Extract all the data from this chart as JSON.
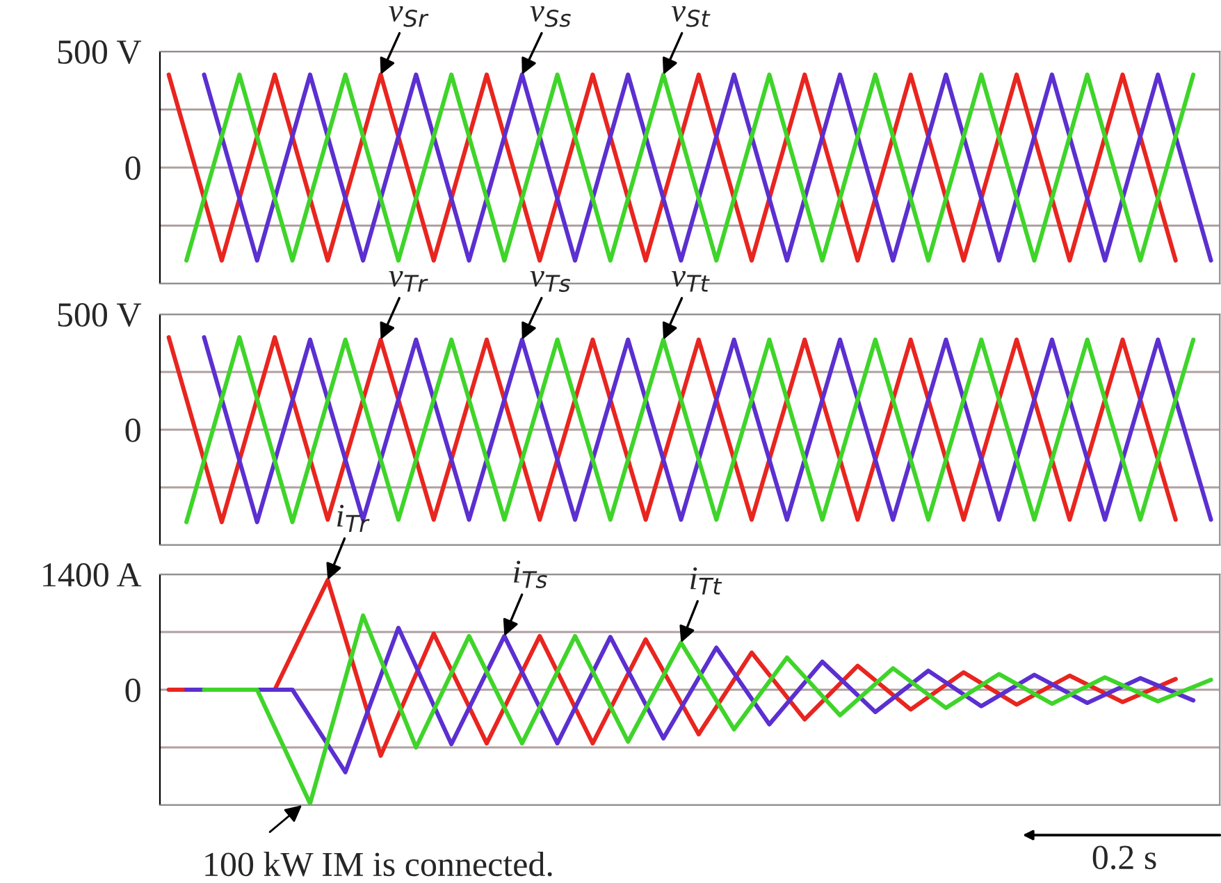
{
  "chart_data": [
    {
      "type": "line",
      "categories": [
        null,
        null,
        null,
        null,
        null,
        null,
        null,
        null,
        null,
        null,
        null,
        null,
        null,
        null,
        null,
        null,
        null,
        null,
        null,
        null,
        null,
        null,
        null,
        null,
        null,
        null,
        null,
        null,
        null,
        null,
        null,
        null,
        null,
        null,
        null,
        null,
        null,
        null,
        null,
        null,
        null,
        null,
        null,
        null,
        null,
        null,
        null,
        null,
        null,
        null,
        null,
        null,
        null,
        null,
        null,
        null,
        null,
        null,
        null,
        null
      ],
      "ylim": [
        -500,
        500
      ],
      "yticks": [
        {
          "value": -500,
          "label": null
        },
        {
          "value": -250,
          "label": null
        },
        0,
        {
          "value": 250,
          "label": null
        },
        {
          "value": 500,
          "label": "500 V"
        }
      ],
      "grid": "y",
      "tick_labels": "y",
      "series": [
        {
          "name": "v$_{Sr}$",
          "color": "#e8251f",
          "values": [
            400,
            null,
            null,
            -400,
            null,
            null,
            400,
            null,
            null,
            -400,
            null,
            null,
            400,
            null,
            null,
            -400,
            null,
            null,
            400,
            null,
            null,
            -400,
            null,
            null,
            400,
            null,
            null,
            -400,
            null,
            null,
            400,
            null,
            null,
            -400,
            null,
            null,
            400,
            null,
            null,
            -400,
            null,
            null,
            400,
            null,
            null,
            -400,
            null,
            null,
            400,
            null,
            null,
            -400,
            null,
            null,
            400,
            null,
            null,
            -400,
            null,
            null
          ]
        },
        {
          "name": "v$_{Ss}$",
          "color": "#5b2fd0",
          "values": [
            null,
            null,
            400,
            null,
            null,
            -400,
            null,
            null,
            400,
            null,
            null,
            -400,
            null,
            null,
            400,
            null,
            null,
            -400,
            null,
            null,
            400,
            null,
            null,
            -400,
            null,
            null,
            400,
            null,
            null,
            -400,
            null,
            null,
            400,
            null,
            null,
            -400,
            null,
            null,
            400,
            null,
            null,
            -400,
            null,
            null,
            400,
            null,
            null,
            -400,
            null,
            null,
            400,
            null,
            null,
            -400,
            null,
            null,
            400,
            null,
            null,
            -400
          ]
        },
        {
          "name": "v$_{St}$",
          "color": "#3fd42a",
          "values": [
            null,
            -400,
            null,
            null,
            400,
            null,
            null,
            -400,
            null,
            null,
            400,
            null,
            null,
            -400,
            null,
            null,
            400,
            null,
            null,
            -400,
            null,
            null,
            400,
            null,
            null,
            -400,
            null,
            null,
            400,
            null,
            null,
            -400,
            null,
            null,
            400,
            null,
            null,
            -400,
            null,
            null,
            400,
            null,
            null,
            -400,
            null,
            null,
            400,
            null,
            null,
            -400,
            null,
            null,
            400,
            null,
            null,
            -400,
            null,
            null,
            400,
            null
          ]
        }
      ]
    },
    {
      "type": "line",
      "categories": [
        null,
        null,
        null,
        null,
        null,
        null,
        null,
        null,
        null,
        null,
        null,
        null,
        null,
        null,
        null,
        null,
        null,
        null,
        null,
        null,
        null,
        null,
        null,
        null,
        null,
        null,
        null,
        null,
        null,
        null,
        null,
        null,
        null,
        null,
        null,
        null,
        null,
        null,
        null,
        null,
        null,
        null,
        null,
        null,
        null,
        null,
        null,
        null,
        null,
        null,
        null,
        null,
        null,
        null,
        null,
        null,
        null,
        null,
        null,
        null
      ],
      "ylim": [
        -500,
        500
      ],
      "yticks": [
        {
          "value": -500,
          "label": null
        },
        {
          "value": -250,
          "label": null
        },
        0,
        {
          "value": 250,
          "label": null
        },
        {
          "value": 500,
          "label": "500 V"
        }
      ],
      "grid": "y",
      "tick_labels": "y",
      "series": [
        {
          "name": "v$_{Tr}$",
          "color": "#e8251f",
          "values": [
            400,
            null,
            null,
            -400,
            null,
            null,
            400,
            null,
            null,
            -390,
            null,
            null,
            390,
            null,
            null,
            -390,
            null,
            null,
            390,
            null,
            null,
            -390,
            null,
            null,
            390,
            null,
            null,
            -390,
            null,
            null,
            390,
            null,
            null,
            -390,
            null,
            null,
            390,
            null,
            null,
            -390,
            null,
            null,
            390,
            null,
            null,
            -390,
            null,
            null,
            390,
            null,
            null,
            -390,
            null,
            null,
            390,
            null,
            null,
            -390,
            null,
            null
          ]
        },
        {
          "name": "v$_{Ts}$",
          "color": "#5b2fd0",
          "values": [
            null,
            null,
            400,
            null,
            null,
            -400,
            null,
            null,
            390,
            null,
            null,
            -390,
            null,
            null,
            390,
            null,
            null,
            -390,
            null,
            null,
            390,
            null,
            null,
            -390,
            null,
            null,
            390,
            null,
            null,
            -390,
            null,
            null,
            390,
            null,
            null,
            -390,
            null,
            null,
            390,
            null,
            null,
            -390,
            null,
            null,
            390,
            null,
            null,
            -390,
            null,
            null,
            390,
            null,
            null,
            -390,
            null,
            null,
            390,
            null,
            null,
            -390
          ]
        },
        {
          "name": "v$_{Tt}$",
          "color": "#3fd42a",
          "values": [
            null,
            -400,
            null,
            null,
            400,
            null,
            null,
            -400,
            null,
            null,
            390,
            null,
            null,
            -390,
            null,
            null,
            390,
            null,
            null,
            -390,
            null,
            null,
            390,
            null,
            null,
            -390,
            null,
            null,
            390,
            null,
            null,
            -390,
            null,
            null,
            390,
            null,
            null,
            -390,
            null,
            null,
            390,
            null,
            null,
            -390,
            null,
            null,
            390,
            null,
            null,
            -390,
            null,
            null,
            390,
            null,
            null,
            -390,
            null,
            null,
            390,
            null
          ]
        }
      ]
    },
    {
      "type": "line",
      "categories": [
        null,
        null,
        null,
        null,
        null,
        null,
        null,
        null,
        null,
        null,
        null,
        null,
        null,
        null,
        null,
        null,
        null,
        null,
        null,
        null,
        null,
        null,
        null,
        null,
        null,
        null,
        null,
        null,
        null,
        null,
        null,
        null,
        null,
        null,
        null,
        null,
        null,
        null,
        null,
        null,
        null,
        null,
        null,
        null,
        null,
        null,
        null,
        null,
        null,
        null,
        null,
        null,
        null,
        null,
        null,
        null,
        null,
        null,
        null,
        null
      ],
      "ylim": [
        -1400,
        1400
      ],
      "yticks": [
        {
          "value": -1400,
          "label": null
        },
        {
          "value": -700,
          "label": null
        },
        0,
        {
          "value": 700,
          "label": null
        },
        {
          "value": 1400,
          "label": "1400 A"
        }
      ],
      "grid": "y",
      "tick_labels": "y",
      "annotations": [
        "100 kW IM is connected.",
        "0.2 s"
      ],
      "series": [
        {
          "name": "i$_{Tr}$",
          "color": "#e8251f",
          "values": [
            0,
            null,
            null,
            0,
            null,
            null,
            0,
            null,
            null,
            1330,
            null,
            null,
            -800,
            null,
            null,
            680,
            null,
            null,
            -650,
            null,
            null,
            650,
            null,
            null,
            -650,
            null,
            null,
            610,
            null,
            null,
            -540,
            null,
            null,
            450,
            null,
            null,
            -360,
            null,
            null,
            290,
            null,
            null,
            -240,
            null,
            null,
            210,
            null,
            null,
            -180,
            null,
            null,
            170,
            null,
            null,
            -150,
            null,
            null,
            130,
            null,
            null
          ]
        },
        {
          "name": "i$_{Ts}$",
          "color": "#5b2fd0",
          "values": [
            null,
            0,
            null,
            null,
            0,
            null,
            null,
            0,
            null,
            null,
            -1000,
            null,
            null,
            750,
            null,
            null,
            -660,
            null,
            null,
            650,
            null,
            null,
            -650,
            null,
            null,
            640,
            null,
            null,
            -590,
            null,
            null,
            510,
            null,
            null,
            -420,
            null,
            null,
            340,
            null,
            null,
            -270,
            null,
            null,
            230,
            null,
            null,
            -200,
            null,
            null,
            180,
            null,
            null,
            -160,
            null,
            null,
            140,
            null,
            null,
            -130,
            null
          ]
        },
        {
          "name": "i$_{Tt}$",
          "color": "#3fd42a",
          "values": [
            null,
            null,
            0,
            null,
            null,
            0,
            null,
            null,
            -1380,
            null,
            null,
            900,
            null,
            null,
            -700,
            null,
            null,
            650,
            null,
            null,
            -650,
            null,
            null,
            650,
            null,
            null,
            -630,
            null,
            null,
            570,
            null,
            null,
            -480,
            null,
            null,
            390,
            null,
            null,
            -310,
            null,
            null,
            260,
            null,
            null,
            -220,
            null,
            null,
            190,
            null,
            null,
            -170,
            null,
            null,
            150,
            null,
            null,
            -140,
            null,
            null,
            120
          ]
        }
      ]
    }
  ]
}
